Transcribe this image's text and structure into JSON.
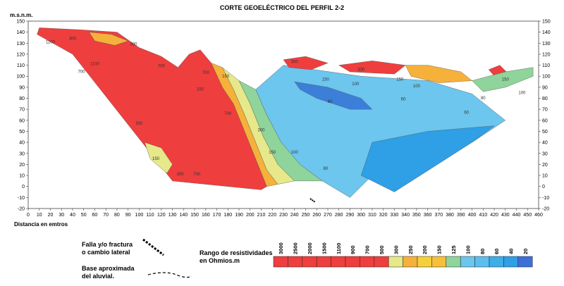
{
  "chart_data": {
    "type": "heatmap",
    "title": "CORTE GEOELÉCTRICO DEL PERFIL 2-2",
    "ylabel": "m.s.n.m.",
    "xlabel": "Distancia en emtros",
    "xlim": [
      0,
      460
    ],
    "ylim": [
      -20,
      150
    ],
    "x_ticks": [
      0,
      10,
      20,
      30,
      40,
      50,
      60,
      70,
      80,
      90,
      100,
      110,
      120,
      130,
      140,
      150,
      160,
      170,
      180,
      190,
      200,
      210,
      220,
      230,
      240,
      250,
      260,
      270,
      280,
      290,
      300,
      310,
      320,
      330,
      340,
      350,
      360,
      370,
      380,
      390,
      400,
      410,
      420,
      430,
      440,
      450,
      460
    ],
    "y_ticks": [
      150,
      140,
      130,
      120,
      110,
      100,
      90,
      80,
      70,
      60,
      50,
      40,
      30,
      20,
      10,
      0,
      -10,
      -20
    ],
    "zones": [
      {
        "name": "red-left",
        "color": "#ef3e3e",
        "points": [
          [
            10,
            144
          ],
          [
            50,
            142
          ],
          [
            80,
            140
          ],
          [
            100,
            126
          ],
          [
            120,
            118
          ],
          [
            135,
            108
          ],
          [
            145,
            120
          ],
          [
            155,
            124
          ],
          [
            165,
            112
          ],
          [
            175,
            90
          ],
          [
            185,
            75
          ],
          [
            195,
            50
          ],
          [
            205,
            25
          ],
          [
            215,
            0
          ],
          [
            210,
            -3
          ],
          [
            130,
            5
          ],
          [
            40,
            120
          ],
          [
            8,
            138
          ]
        ]
      },
      {
        "name": "orange-band",
        "color": "#f6b13a",
        "points": [
          [
            165,
            112
          ],
          [
            175,
            108
          ],
          [
            185,
            88
          ],
          [
            195,
            65
          ],
          [
            205,
            40
          ],
          [
            215,
            15
          ],
          [
            225,
            2
          ],
          [
            215,
            0
          ],
          [
            205,
            25
          ],
          [
            195,
            50
          ],
          [
            185,
            75
          ],
          [
            175,
            90
          ]
        ]
      },
      {
        "name": "yellow-band",
        "color": "#e6e88a",
        "points": [
          [
            175,
            108
          ],
          [
            190,
            96
          ],
          [
            200,
            75
          ],
          [
            212,
            45
          ],
          [
            225,
            20
          ],
          [
            240,
            5
          ],
          [
            225,
            2
          ],
          [
            215,
            15
          ],
          [
            205,
            40
          ],
          [
            195,
            65
          ],
          [
            185,
            88
          ]
        ]
      },
      {
        "name": "green-band",
        "color": "#8fd49a",
        "points": [
          [
            190,
            96
          ],
          [
            205,
            88
          ],
          [
            215,
            65
          ],
          [
            228,
            40
          ],
          [
            245,
            20
          ],
          [
            265,
            5
          ],
          [
            240,
            5
          ],
          [
            225,
            20
          ],
          [
            212,
            45
          ],
          [
            200,
            75
          ]
        ]
      },
      {
        "name": "light-blue-main",
        "color": "#6cc6ee",
        "points": [
          [
            205,
            88
          ],
          [
            230,
            110
          ],
          [
            300,
            100
          ],
          [
            360,
            96
          ],
          [
            400,
            84
          ],
          [
            430,
            60
          ],
          [
            400,
            40
          ],
          [
            320,
            20
          ],
          [
            290,
            -10
          ],
          [
            265,
            5
          ],
          [
            245,
            20
          ],
          [
            228,
            40
          ],
          [
            215,
            65
          ]
        ]
      },
      {
        "name": "blue-deep",
        "color": "#3c7fd8",
        "points": [
          [
            240,
            95
          ],
          [
            270,
            90
          ],
          [
            300,
            80
          ],
          [
            310,
            70
          ],
          [
            290,
            70
          ],
          [
            260,
            80
          ],
          [
            245,
            88
          ]
        ]
      },
      {
        "name": "blue-lower",
        "color": "#2f9fe6",
        "points": [
          [
            300,
            10
          ],
          [
            310,
            40
          ],
          [
            360,
            50
          ],
          [
            420,
            55
          ],
          [
            400,
            40
          ],
          [
            330,
            -5
          ]
        ]
      },
      {
        "name": "red-top-center",
        "color": "#ef3e3e",
        "points": [
          [
            230,
            115
          ],
          [
            250,
            118
          ],
          [
            270,
            112
          ],
          [
            255,
            106
          ],
          [
            235,
            108
          ]
        ]
      },
      {
        "name": "red-top-right",
        "color": "#ef3e3e",
        "points": [
          [
            280,
            110
          ],
          [
            310,
            114
          ],
          [
            340,
            110
          ],
          [
            330,
            102
          ],
          [
            290,
            104
          ]
        ]
      },
      {
        "name": "red-far-right",
        "color": "#ef3e3e",
        "points": [
          [
            415,
            106
          ],
          [
            425,
            110
          ],
          [
            432,
            103
          ],
          [
            422,
            98
          ]
        ]
      },
      {
        "name": "orange-right",
        "color": "#f6b13a",
        "points": [
          [
            340,
            110
          ],
          [
            360,
            110
          ],
          [
            390,
            104
          ],
          [
            400,
            96
          ],
          [
            370,
            94
          ],
          [
            345,
            100
          ]
        ]
      },
      {
        "name": "green-right",
        "color": "#8fd49a",
        "points": [
          [
            400,
            96
          ],
          [
            430,
            104
          ],
          [
            455,
            108
          ],
          [
            455,
            100
          ],
          [
            430,
            90
          ],
          [
            410,
            86
          ]
        ]
      },
      {
        "name": "yellow-bottom-left",
        "color": "#e6e88a",
        "points": [
          [
            105,
            40
          ],
          [
            120,
            35
          ],
          [
            130,
            20
          ],
          [
            125,
            12
          ],
          [
            110,
            25
          ]
        ]
      },
      {
        "name": "orange-top-left",
        "color": "#f6b13a",
        "points": [
          [
            55,
            140
          ],
          [
            75,
            138
          ],
          [
            90,
            132
          ],
          [
            78,
            128
          ],
          [
            60,
            132
          ]
        ]
      }
    ],
    "contour_labels": [
      {
        "text": "1100",
        "x": 20,
        "y": 130
      },
      {
        "text": "300",
        "x": 40,
        "y": 133
      },
      {
        "text": "300",
        "x": 95,
        "y": 128
      },
      {
        "text": "1100",
        "x": 60,
        "y": 110
      },
      {
        "text": "700",
        "x": 48,
        "y": 103
      },
      {
        "text": "700",
        "x": 120,
        "y": 108
      },
      {
        "text": "700",
        "x": 160,
        "y": 102
      },
      {
        "text": "150",
        "x": 178,
        "y": 99
      },
      {
        "text": "150",
        "x": 155,
        "y": 87
      },
      {
        "text": "300",
        "x": 240,
        "y": 112
      },
      {
        "text": "300",
        "x": 300,
        "y": 105
      },
      {
        "text": "150",
        "x": 268,
        "y": 96
      },
      {
        "text": "100",
        "x": 295,
        "y": 92
      },
      {
        "text": "150",
        "x": 335,
        "y": 96
      },
      {
        "text": "100",
        "x": 350,
        "y": 90
      },
      {
        "text": "60",
        "x": 272,
        "y": 76
      },
      {
        "text": "60",
        "x": 338,
        "y": 78
      },
      {
        "text": "60",
        "x": 395,
        "y": 66
      },
      {
        "text": "80",
        "x": 410,
        "y": 79
      },
      {
        "text": "150",
        "x": 430,
        "y": 96
      },
      {
        "text": "100",
        "x": 445,
        "y": 84
      },
      {
        "text": "300",
        "x": 100,
        "y": 56
      },
      {
        "text": "700",
        "x": 180,
        "y": 65
      },
      {
        "text": "300",
        "x": 210,
        "y": 50
      },
      {
        "text": "150",
        "x": 220,
        "y": 30
      },
      {
        "text": "100",
        "x": 240,
        "y": 30
      },
      {
        "text": "80",
        "x": 268,
        "y": 15
      },
      {
        "text": "150",
        "x": 115,
        "y": 24
      },
      {
        "text": "300",
        "x": 137,
        "y": 10
      },
      {
        "text": "700",
        "x": 152,
        "y": 10
      }
    ],
    "legend": {
      "label_line1": "Rango de resistividades",
      "label_line2": "en Ohmios.m",
      "values": [
        "3000",
        "2500",
        "2000",
        "1500",
        "1100",
        "900",
        "700",
        "500",
        "300",
        "250",
        "200",
        "150",
        "125",
        "100",
        "80",
        "60",
        "40",
        "20"
      ],
      "colors": [
        "#ef3e3e",
        "#ef3e3e",
        "#ef3e3e",
        "#ef3e3e",
        "#ef3e3e",
        "#ef3e3e",
        "#ef3e3e",
        "#ef3e3e",
        "#e6e88a",
        "#f6b13a",
        "#f6d03a",
        "#f6c03a",
        "#8fd49a",
        "#6cc6ee",
        "#5bbef0",
        "#3faee8",
        "#2f9fe6",
        "#3c6fd8"
      ]
    },
    "annotations": {
      "fault_line1": "Falla y/o fractura",
      "fault_line2": "o cambio lateral",
      "alluvial_line1": "Base aproximada",
      "alluvial_line2": "del aluvial."
    }
  }
}
